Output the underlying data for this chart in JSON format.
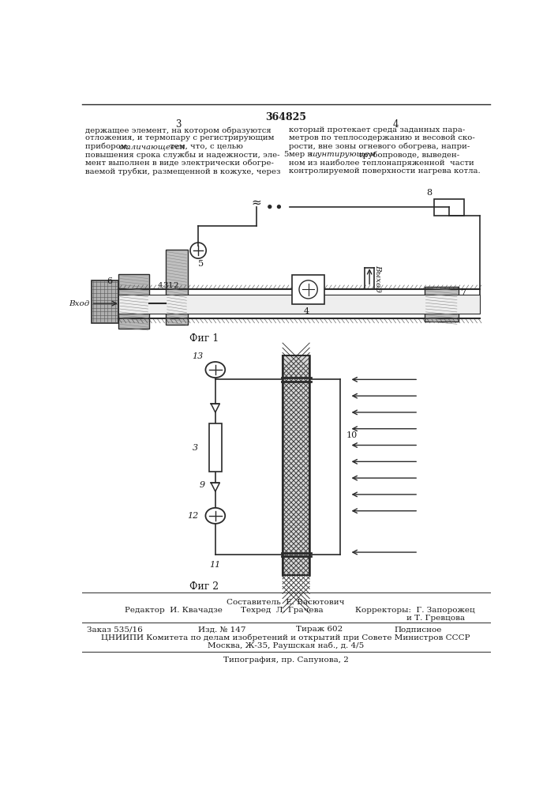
{
  "page_title": "364825",
  "col_left_num": "3",
  "col_right_num": "4",
  "fig1_caption": "Фиг 1",
  "fig2_caption": "Фиг 2",
  "footer_composer_label": "Составитель",
  "footer_composer": "Е. Васютович",
  "footer_editor_label": "Редактор",
  "footer_editor": "И. Квачадзе",
  "footer_tech_label": "Техред",
  "footer_tech": "Л. Грачева",
  "footer_correctors_label": "Корректоры:",
  "footer_corrector1": "Г. Запорожец",
  "footer_corrector2": "и Т. Гревцова",
  "footer_order": "Заказ 535/16",
  "footer_pub": "Изд. № 147",
  "footer_print": "Тираж 602",
  "footer_signed": "Подписное",
  "footer_org": "ЦНИИПИ Комитета по делам изобретений и открытий при Совете Министров СССР",
  "footer_address": "Москва, Ж-35, Раушская наб., д. 4/5",
  "footer_typography": "Типография, пр. Сапунова, 2",
  "bg_color": "#ffffff",
  "text_color": "#1a1a1a",
  "line_color": "#2a2a2a"
}
